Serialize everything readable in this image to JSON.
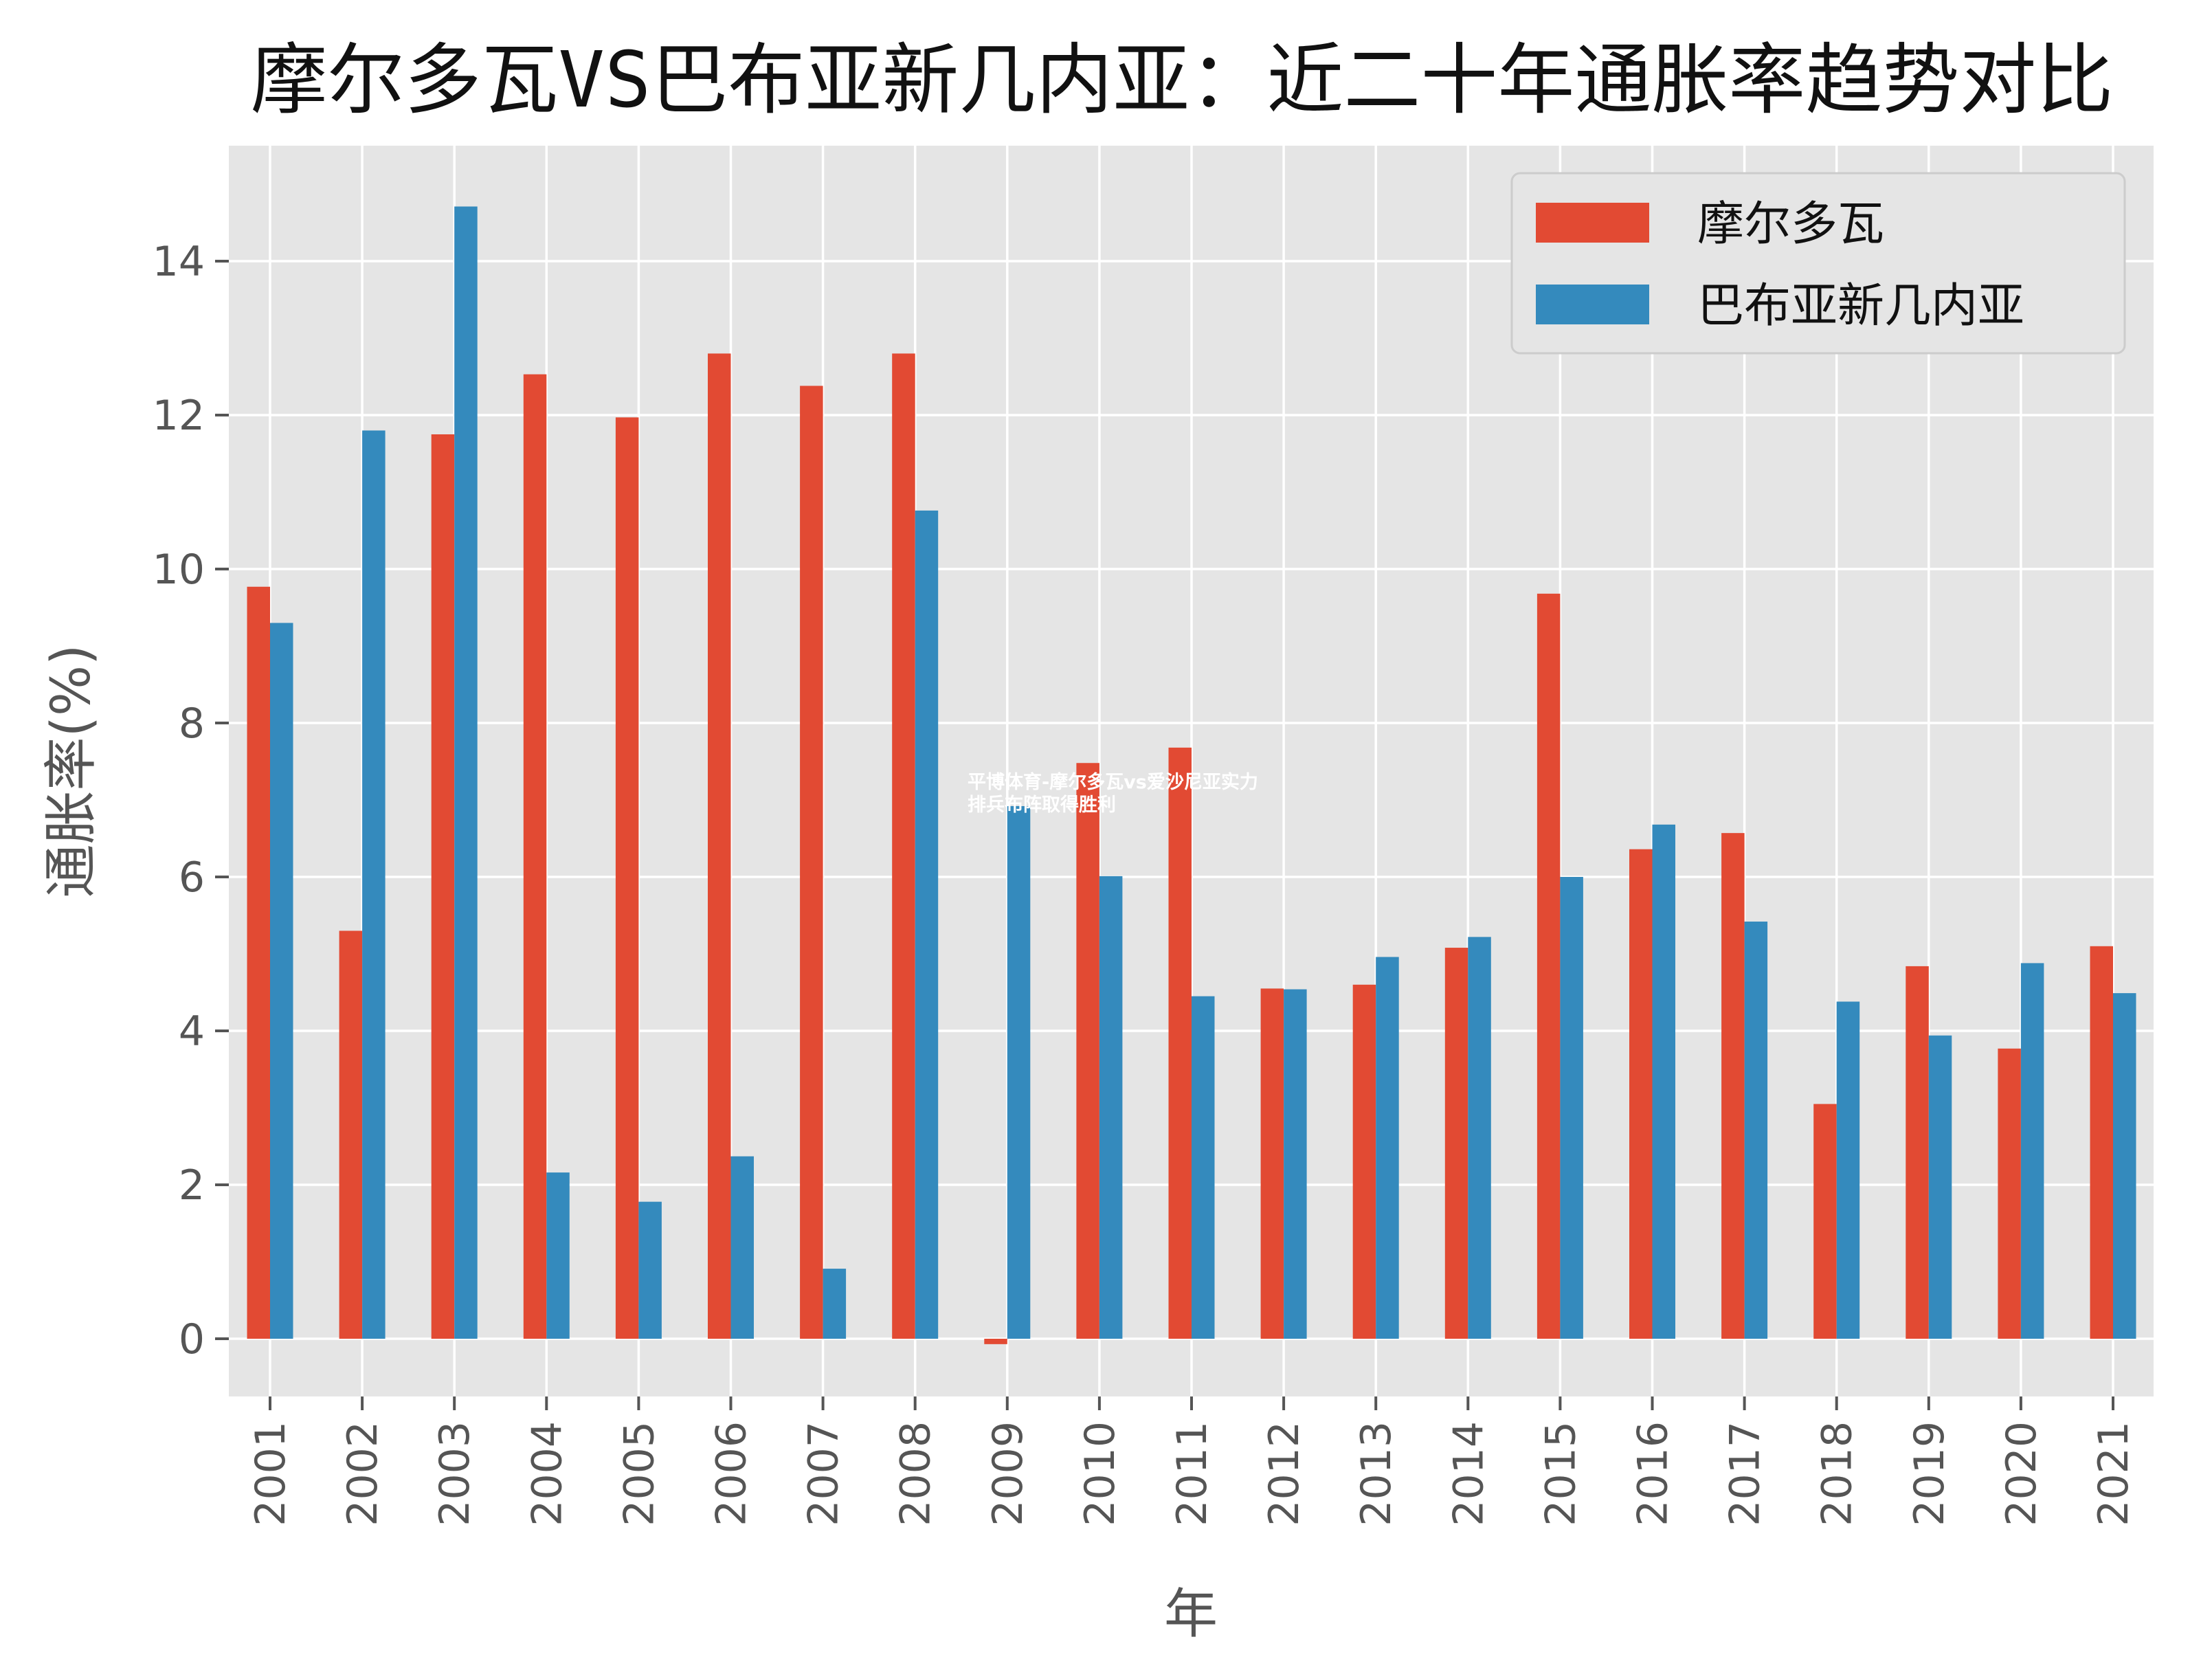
{
  "chart_data": {
    "type": "bar",
    "title": "摩尔多瓦VS巴布亚新几内亚：近二十年通胀率趋势对比",
    "xlabel": "年",
    "ylabel": "通胀率(%)",
    "categories": [
      "2001",
      "2002",
      "2003",
      "2004",
      "2005",
      "2006",
      "2007",
      "2008",
      "2009",
      "2010",
      "2011",
      "2012",
      "2013",
      "2014",
      "2015",
      "2016",
      "2017",
      "2018",
      "2019",
      "2020",
      "2021"
    ],
    "series": [
      {
        "name": "摩尔多瓦",
        "color": "#E24A33",
        "values": [
          9.77,
          5.3,
          11.75,
          12.53,
          11.97,
          12.8,
          12.38,
          12.8,
          -0.07,
          7.48,
          7.68,
          4.55,
          4.6,
          5.08,
          9.68,
          6.36,
          6.57,
          3.05,
          4.84,
          3.77,
          5.1
        ]
      },
      {
        "name": "巴布亚新几内亚",
        "color": "#348ABD",
        "values": [
          9.3,
          11.8,
          14.71,
          2.16,
          1.78,
          2.37,
          0.91,
          10.76,
          6.92,
          6.01,
          4.45,
          4.54,
          4.96,
          5.22,
          6.0,
          6.68,
          5.42,
          4.38,
          3.94,
          4.88,
          4.49
        ]
      }
    ],
    "ylim": [
      -0.75,
      15.5
    ],
    "yticks": [
      0,
      2,
      4,
      6,
      8,
      10,
      12,
      14
    ],
    "grid": true,
    "legend_position": "top-right",
    "background": "#E5E5E5"
  },
  "watermark": "平博体育-摩尔多瓦vs爱沙尼亚实力排兵布阵取得胜利"
}
